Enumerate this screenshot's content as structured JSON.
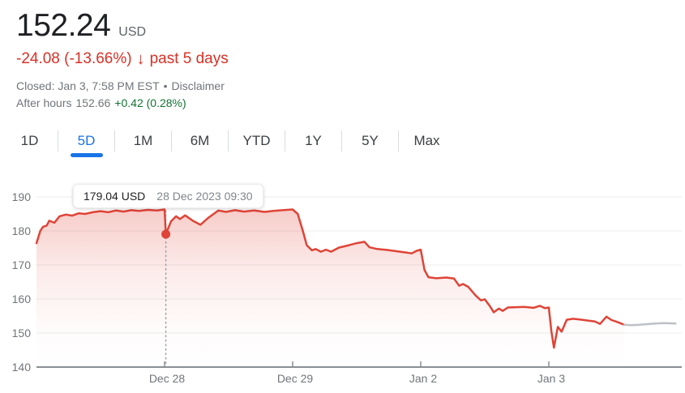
{
  "header": {
    "price": "152.24",
    "currency": "USD",
    "change": "-24.08 (-13.66%)",
    "change_arrow": "↓",
    "change_period": "past 5 days",
    "closed_text": "Closed: Jan 3, 7:58 PM EST",
    "bullet": "•",
    "disclaimer": "Disclaimer",
    "after_hours_label": "After hours",
    "after_hours_price": "152.66",
    "after_hours_change": "+0.42 (0.28%)"
  },
  "tabs": {
    "items": [
      {
        "label": "1D",
        "selected": false
      },
      {
        "label": "5D",
        "selected": true
      },
      {
        "label": "1M",
        "selected": false
      },
      {
        "label": "6M",
        "selected": false
      },
      {
        "label": "YTD",
        "selected": false
      },
      {
        "label": "1Y",
        "selected": false
      },
      {
        "label": "5Y",
        "selected": false
      },
      {
        "label": "Max",
        "selected": false
      }
    ]
  },
  "tooltip": {
    "price": "179.04 USD",
    "datetime": "28 Dec 2023 09:30"
  },
  "colors": {
    "accent_blue": "#1a73e8",
    "negative_red": "#d93025",
    "positive_green": "#137333",
    "line_red": "#df4437",
    "after_hours_line": "#bdc1c6",
    "gridline": "#ececec",
    "axis_line": "#8a8f94",
    "axis_label": "#70757a",
    "crosshair": "#9aa0a6"
  },
  "chart_data": {
    "type": "line",
    "x_unit": "trading days (0 = Dec 27 open, 1 = Dec 28 open, ...)",
    "xlim": [
      0,
      5
    ],
    "ylim": [
      140,
      190
    ],
    "y_ticks": [
      140,
      150,
      160,
      170,
      180,
      190
    ],
    "x_ticks": [
      {
        "pos": 1,
        "label": "Dec 28"
      },
      {
        "pos": 2,
        "label": "Dec 29"
      },
      {
        "pos": 3,
        "label": "Jan 2"
      },
      {
        "pos": 4,
        "label": "Jan 3"
      }
    ],
    "grid": true,
    "legend": "none",
    "marked_point": {
      "x": 1.01,
      "y": 179.04,
      "tooltip": "179.04 USD 28 Dec 2023 09:30"
    },
    "series": [
      {
        "name": "regular-hours-price",
        "fill_gradient": true,
        "points": [
          [
            0.0,
            176.4
          ],
          [
            0.03,
            180.0
          ],
          [
            0.05,
            181.2
          ],
          [
            0.08,
            181.6
          ],
          [
            0.1,
            183.0
          ],
          [
            0.14,
            182.4
          ],
          [
            0.18,
            184.3
          ],
          [
            0.23,
            184.8
          ],
          [
            0.28,
            184.5
          ],
          [
            0.33,
            185.2
          ],
          [
            0.38,
            185.0
          ],
          [
            0.44,
            185.5
          ],
          [
            0.5,
            185.8
          ],
          [
            0.56,
            185.5
          ],
          [
            0.62,
            186.0
          ],
          [
            0.68,
            185.7
          ],
          [
            0.74,
            186.1
          ],
          [
            0.8,
            185.9
          ],
          [
            0.87,
            186.2
          ],
          [
            0.94,
            186.0
          ],
          [
            1.0,
            186.3
          ],
          [
            1.01,
            179.04
          ],
          [
            1.05,
            182.8
          ],
          [
            1.09,
            184.3
          ],
          [
            1.12,
            183.5
          ],
          [
            1.16,
            184.6
          ],
          [
            1.22,
            183.0
          ],
          [
            1.28,
            181.8
          ],
          [
            1.34,
            183.8
          ],
          [
            1.42,
            186.0
          ],
          [
            1.48,
            185.6
          ],
          [
            1.55,
            186.1
          ],
          [
            1.62,
            185.7
          ],
          [
            1.7,
            186.0
          ],
          [
            1.78,
            185.6
          ],
          [
            1.85,
            185.9
          ],
          [
            1.92,
            186.1
          ],
          [
            2.0,
            186.3
          ],
          [
            2.04,
            185.0
          ],
          [
            2.08,
            180.0
          ],
          [
            2.11,
            175.8
          ],
          [
            2.15,
            174.3
          ],
          [
            2.18,
            174.7
          ],
          [
            2.22,
            173.9
          ],
          [
            2.26,
            174.5
          ],
          [
            2.3,
            173.9
          ],
          [
            2.36,
            175.1
          ],
          [
            2.44,
            175.8
          ],
          [
            2.5,
            176.4
          ],
          [
            2.56,
            176.8
          ],
          [
            2.6,
            175.2
          ],
          [
            2.66,
            174.7
          ],
          [
            2.74,
            174.4
          ],
          [
            2.82,
            174.0
          ],
          [
            2.88,
            173.7
          ],
          [
            2.93,
            173.4
          ],
          [
            2.97,
            174.2
          ],
          [
            3.0,
            174.5
          ],
          [
            3.03,
            168.5
          ],
          [
            3.06,
            166.4
          ],
          [
            3.12,
            166.1
          ],
          [
            3.2,
            166.3
          ],
          [
            3.26,
            166.0
          ],
          [
            3.3,
            163.9
          ],
          [
            3.33,
            164.4
          ],
          [
            3.37,
            163.6
          ],
          [
            3.43,
            161.0
          ],
          [
            3.47,
            159.6
          ],
          [
            3.5,
            159.9
          ],
          [
            3.54,
            157.9
          ],
          [
            3.57,
            156.1
          ],
          [
            3.61,
            157.2
          ],
          [
            3.64,
            156.5
          ],
          [
            3.68,
            157.5
          ],
          [
            3.74,
            157.6
          ],
          [
            3.81,
            157.7
          ],
          [
            3.88,
            157.4
          ],
          [
            3.93,
            158.0
          ],
          [
            3.97,
            157.3
          ],
          [
            4.0,
            157.5
          ],
          [
            4.02,
            150.5
          ],
          [
            4.04,
            145.7
          ],
          [
            4.07,
            151.8
          ],
          [
            4.1,
            150.4
          ],
          [
            4.14,
            153.9
          ],
          [
            4.19,
            154.2
          ],
          [
            4.24,
            154.0
          ],
          [
            4.3,
            153.7
          ],
          [
            4.36,
            153.4
          ],
          [
            4.4,
            152.7
          ],
          [
            4.45,
            154.8
          ],
          [
            4.49,
            153.8
          ],
          [
            4.53,
            153.3
          ],
          [
            4.59,
            152.4
          ]
        ]
      },
      {
        "name": "after-hours-price",
        "fill_gradient": false,
        "points": [
          [
            4.59,
            152.4
          ],
          [
            4.64,
            152.3
          ],
          [
            4.7,
            152.4
          ],
          [
            4.76,
            152.6
          ],
          [
            4.83,
            152.8
          ],
          [
            4.9,
            152.9
          ],
          [
            4.99,
            152.8
          ]
        ]
      }
    ]
  }
}
